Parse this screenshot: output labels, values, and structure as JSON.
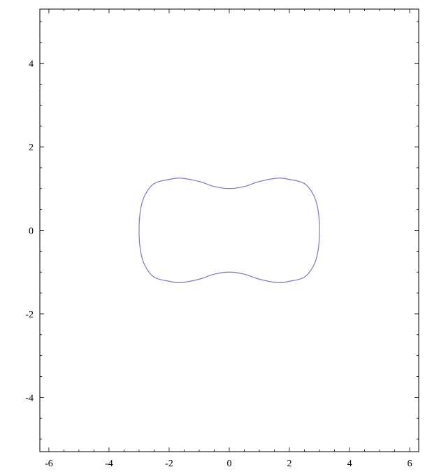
{
  "chart_data": {
    "type": "line",
    "title": "",
    "xlabel": "",
    "ylabel": "",
    "xlim": [
      -6.3,
      6.3
    ],
    "ylim": [
      -5.3,
      5.3
    ],
    "grid": false,
    "x_ticks": [
      -6,
      -4,
      -2,
      0,
      2,
      4,
      6
    ],
    "x_tick_labels": [
      "-6",
      "-4",
      "-2",
      "0",
      "2",
      "4",
      "6"
    ],
    "y_ticks": [
      -4,
      -2,
      0,
      2,
      4
    ],
    "y_tick_labels": [
      "-4",
      "-2",
      "0",
      "2",
      "4"
    ],
    "series": [
      {
        "color": "#7b7bc0",
        "closed": true,
        "x": [
          3.0,
          2.95,
          2.8,
          2.5,
          2.0,
          1.6,
          1.0,
          0.5,
          0.0,
          -0.5,
          -1.0,
          -1.6,
          -2.0,
          -2.5,
          -2.8,
          -2.95,
          -3.0,
          -2.95,
          -2.8,
          -2.5,
          -2.0,
          -1.6,
          -1.0,
          -0.5,
          0.0,
          0.5,
          1.0,
          1.6,
          2.0,
          2.5,
          2.8,
          2.95
        ],
        "y": [
          0.0,
          0.5,
          0.85,
          1.12,
          1.22,
          1.25,
          1.17,
          1.05,
          1.0,
          1.05,
          1.17,
          1.25,
          1.22,
          1.12,
          0.85,
          0.5,
          0.0,
          -0.5,
          -0.85,
          -1.12,
          -1.22,
          -1.25,
          -1.17,
          -1.05,
          -1.0,
          -1.05,
          -1.17,
          -1.25,
          -1.22,
          -1.12,
          -0.85,
          -0.5
        ]
      }
    ]
  }
}
